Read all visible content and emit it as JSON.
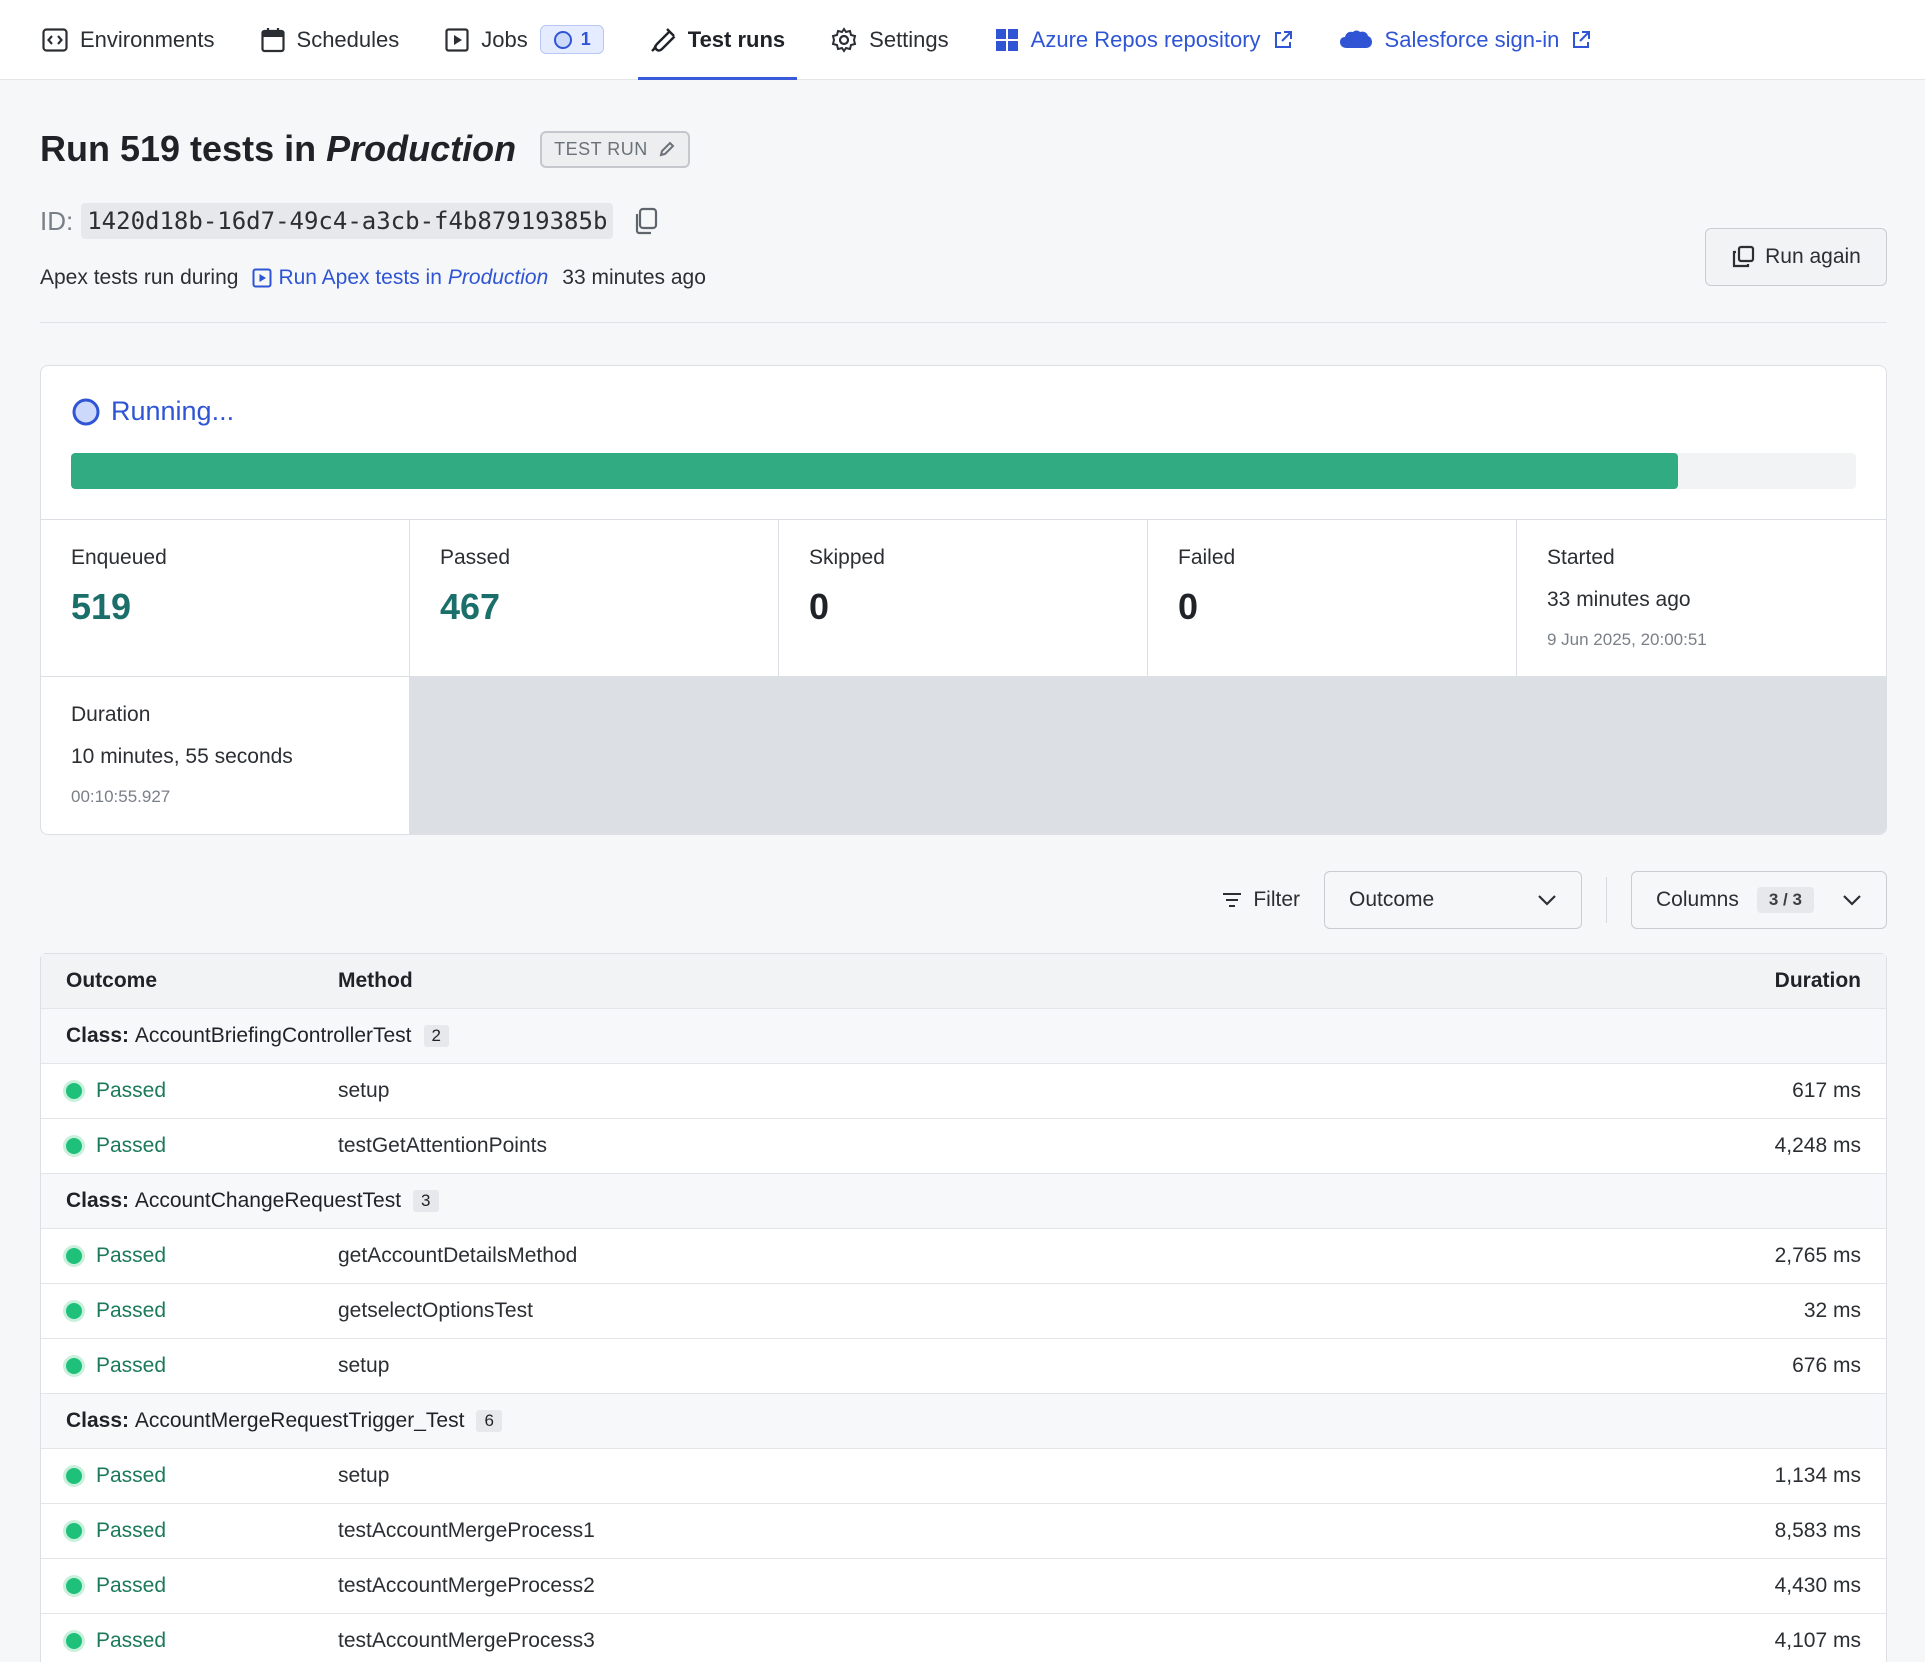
{
  "nav": {
    "items": [
      {
        "label": "Environments",
        "icon": "code-window-icon"
      },
      {
        "label": "Schedules",
        "icon": "calendar-icon"
      },
      {
        "label": "Jobs",
        "icon": "play-square-icon",
        "badge": "1"
      },
      {
        "label": "Test runs",
        "icon": "test-tube-icon"
      },
      {
        "label": "Settings",
        "icon": "gear-icon"
      }
    ],
    "links": [
      {
        "label": "Azure Repos repository",
        "icon": "azure-repos-icon"
      },
      {
        "label": "Salesforce sign-in",
        "icon": "salesforce-cloud-icon"
      }
    ]
  },
  "header": {
    "title_prefix": "Run 519 tests in",
    "title_env": "Production",
    "type_badge": "TEST RUN",
    "id_label": "ID:",
    "id_value": "1420d18b-16d7-49c4-a3cb-f4b87919385b",
    "desc_prefix": "Apex tests run during",
    "desc_link_prefix": "Run Apex tests in",
    "desc_link_env": "Production",
    "desc_suffix": "33 minutes ago",
    "run_again": "Run again"
  },
  "status": {
    "label": "Running...",
    "progress": 0.9
  },
  "stats": {
    "enqueued_label": "Enqueued",
    "enqueued": "519",
    "passed_label": "Passed",
    "passed": "467",
    "skipped_label": "Skipped",
    "skipped": "0",
    "failed_label": "Failed",
    "failed": "0",
    "started_label": "Started",
    "started_relative": "33 minutes ago",
    "started_exact": "9 Jun 2025, 20:00:51",
    "duration_label": "Duration",
    "duration_text": "10 minutes, 55 seconds",
    "duration_exact": "00:10:55.927"
  },
  "filter": {
    "label": "Filter",
    "outcome_select": "Outcome",
    "columns_label": "Columns",
    "columns_count": "3 / 3"
  },
  "table": {
    "headers": {
      "outcome": "Outcome",
      "method": "Method",
      "duration": "Duration"
    },
    "class_prefix": "Class:",
    "groups": [
      {
        "name": "AccountBriefingControllerTest",
        "count": "2",
        "rows": [
          {
            "outcome": "Passed",
            "method": "setup",
            "duration": "617 ms"
          },
          {
            "outcome": "Passed",
            "method": "testGetAttentionPoints",
            "duration": "4,248 ms"
          }
        ]
      },
      {
        "name": "AccountChangeRequestTest",
        "count": "3",
        "rows": [
          {
            "outcome": "Passed",
            "method": "getAccountDetailsMethod",
            "duration": "2,765 ms"
          },
          {
            "outcome": "Passed",
            "method": "getselectOptionsTest",
            "duration": "32 ms"
          },
          {
            "outcome": "Passed",
            "method": "setup",
            "duration": "676 ms"
          }
        ]
      },
      {
        "name": "AccountMergeRequestTrigger_Test",
        "count": "6",
        "rows": [
          {
            "outcome": "Passed",
            "method": "setup",
            "duration": "1,134 ms"
          },
          {
            "outcome": "Passed",
            "method": "testAccountMergeProcess1",
            "duration": "8,583 ms"
          },
          {
            "outcome": "Passed",
            "method": "testAccountMergeProcess2",
            "duration": "4,430 ms"
          },
          {
            "outcome": "Passed",
            "method": "testAccountMergeProcess3",
            "duration": "4,107 ms"
          }
        ]
      }
    ]
  },
  "colors": {
    "accent": "#3a5bd9",
    "link": "#2f55d4",
    "progress": "#31ab82",
    "passed": "#1b7a5a",
    "teal_number": "#1b6f6a"
  }
}
